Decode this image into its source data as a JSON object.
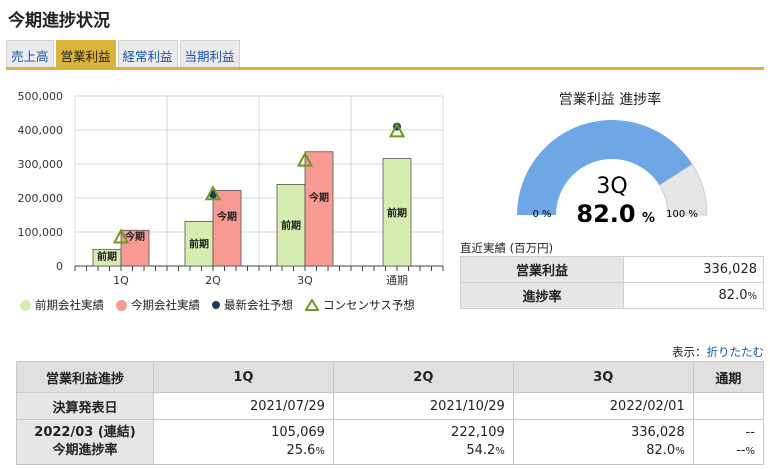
{
  "page_title": "今期進捗状況",
  "tabs": [
    {
      "label": "売上高",
      "active": false
    },
    {
      "label": "営業利益",
      "active": true
    },
    {
      "label": "経常利益",
      "active": false
    },
    {
      "label": "当期利益",
      "active": false
    }
  ],
  "chart_data": {
    "type": "bar",
    "categories": [
      "1Q",
      "2Q",
      "3Q",
      "通期"
    ],
    "ylim": [
      0,
      500000
    ],
    "yticks": [
      "0",
      "100,000",
      "200,000",
      "300,000",
      "400,000",
      "500,000"
    ],
    "series": [
      {
        "name": "前期会社実績",
        "color": "#d6ecb1",
        "bar_label": "前期",
        "values": [
          49000,
          131000,
          240000,
          316000
        ]
      },
      {
        "name": "今期会社実績",
        "color": "#f79a94",
        "bar_label": "今期",
        "values": [
          105069,
          222109,
          336028,
          null
        ]
      }
    ],
    "markers": [
      {
        "name": "最新会社予想",
        "color": "#1d3b5e",
        "values": [
          null,
          210000,
          null,
          410000
        ]
      },
      {
        "name": "コンセンサス予想",
        "color": "#6a9a1f",
        "values": [
          84000,
          211000,
          310000,
          396000
        ]
      }
    ]
  },
  "gauge": {
    "title": "営業利益 進捗率",
    "period": "3Q",
    "value": 82.0,
    "value_text": "82.0",
    "unit": "%",
    "min_label": "0 %",
    "max_label": "100 %",
    "fill_color": "#6fa6e6",
    "rest_color": "#e6e6e6"
  },
  "recent": {
    "label": "直近実績 (百万円)",
    "rows": [
      {
        "head": "営業利益",
        "value": "336,028",
        "unit": ""
      },
      {
        "head": "進捗率",
        "value": "82.0",
        "unit": "%"
      }
    ]
  },
  "display": {
    "prefix": "表示：",
    "link": "折りたたむ"
  },
  "table": {
    "headers": [
      "営業利益進捗",
      "1Q",
      "2Q",
      "3Q",
      "通期"
    ],
    "announce_label": "決算発表日",
    "announce": [
      "2021/07/29",
      "2021/10/29",
      "2022/02/01",
      ""
    ],
    "period_label": "2022/03 (連結)",
    "progress_label": "今期進捗率",
    "values": [
      "105,069",
      "222,109",
      "336,028",
      "--"
    ],
    "rates": [
      "25.6",
      "54.2",
      "82.0",
      "--"
    ],
    "rate_unit": "%"
  }
}
